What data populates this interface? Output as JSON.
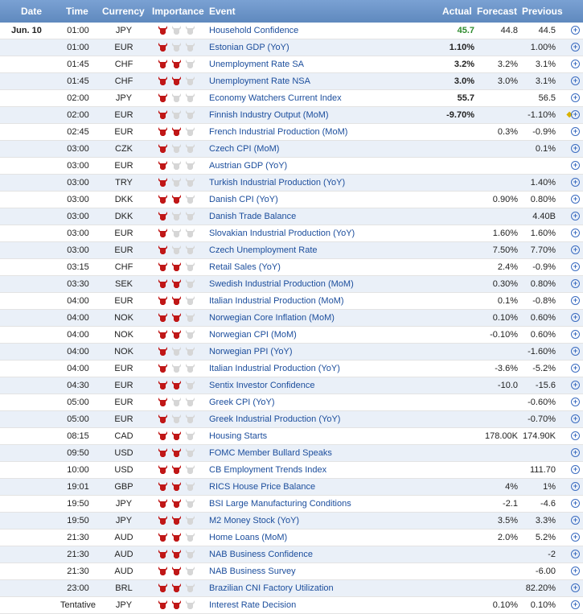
{
  "header": {
    "date": "Date",
    "time": "Time",
    "currency": "Currency",
    "importance": "Importance",
    "event": "Event",
    "actual": "Actual",
    "forecast": "Forecast",
    "previous": "Previous"
  },
  "colors": {
    "header_bg": "#6e96c9",
    "bull_active": "#c01717",
    "bull_inactive": "#d6d6d6",
    "event_link": "#1b4d9c",
    "actual_positive": "#2e8b2e"
  },
  "rows": [
    {
      "date": "Jun. 10",
      "time": "01:00",
      "currency": "JPY",
      "importance": 1,
      "event": "Household Confidence",
      "actual": "45.7",
      "forecast": "44.8",
      "previous": "44.5",
      "actual_class": "pos",
      "flag": ""
    },
    {
      "date": "",
      "time": "01:00",
      "currency": "EUR",
      "importance": 1,
      "event": "Estonian GDP (YoY)",
      "actual": "1.10%",
      "forecast": "",
      "previous": "1.00%",
      "actual_class": "",
      "flag": ""
    },
    {
      "date": "",
      "time": "01:45",
      "currency": "CHF",
      "importance": 2,
      "event": "Unemployment Rate SA",
      "actual": "3.2%",
      "forecast": "3.2%",
      "previous": "3.1%",
      "actual_class": "",
      "flag": ""
    },
    {
      "date": "",
      "time": "01:45",
      "currency": "CHF",
      "importance": 2,
      "event": "Unemployment Rate NSA",
      "actual": "3.0%",
      "forecast": "3.0%",
      "previous": "3.1%",
      "actual_class": "",
      "flag": ""
    },
    {
      "date": "",
      "time": "02:00",
      "currency": "JPY",
      "importance": 1,
      "event": "Economy Watchers Current Index",
      "actual": "55.7",
      "forecast": "",
      "previous": "56.5",
      "actual_class": "",
      "flag": ""
    },
    {
      "date": "",
      "time": "02:00",
      "currency": "EUR",
      "importance": 1,
      "event": "Finnish Industry Output (MoM)",
      "actual": "-9.70%",
      "forecast": "",
      "previous": "-1.10%",
      "actual_class": "",
      "flag": "◆"
    },
    {
      "date": "",
      "time": "02:45",
      "currency": "EUR",
      "importance": 2,
      "event": "French Industrial Production (MoM)",
      "actual": "",
      "forecast": "0.3%",
      "previous": "-0.9%",
      "actual_class": "",
      "flag": ""
    },
    {
      "date": "",
      "time": "03:00",
      "currency": "CZK",
      "importance": 1,
      "event": "Czech CPI (MoM)",
      "actual": "",
      "forecast": "",
      "previous": "0.1%",
      "actual_class": "",
      "flag": ""
    },
    {
      "date": "",
      "time": "03:00",
      "currency": "EUR",
      "importance": 1,
      "event": "Austrian GDP (YoY)",
      "actual": "",
      "forecast": "",
      "previous": "",
      "actual_class": "",
      "flag": ""
    },
    {
      "date": "",
      "time": "03:00",
      "currency": "TRY",
      "importance": 1,
      "event": "Turkish Industrial Production (YoY)",
      "actual": "",
      "forecast": "",
      "previous": "1.40%",
      "actual_class": "",
      "flag": ""
    },
    {
      "date": "",
      "time": "03:00",
      "currency": "DKK",
      "importance": 2,
      "event": "Danish CPI (YoY)",
      "actual": "",
      "forecast": "0.90%",
      "previous": "0.80%",
      "actual_class": "",
      "flag": ""
    },
    {
      "date": "",
      "time": "03:00",
      "currency": "DKK",
      "importance": 1,
      "event": "Danish Trade Balance",
      "actual": "",
      "forecast": "",
      "previous": "4.40B",
      "actual_class": "",
      "flag": ""
    },
    {
      "date": "",
      "time": "03:00",
      "currency": "EUR",
      "importance": 1,
      "event": "Slovakian Industrial Production (YoY)",
      "actual": "",
      "forecast": "1.60%",
      "previous": "1.60%",
      "actual_class": "",
      "flag": ""
    },
    {
      "date": "",
      "time": "03:00",
      "currency": "EUR",
      "importance": 1,
      "event": "Czech Unemployment Rate",
      "actual": "",
      "forecast": "7.50%",
      "previous": "7.70%",
      "actual_class": "",
      "flag": ""
    },
    {
      "date": "",
      "time": "03:15",
      "currency": "CHF",
      "importance": 2,
      "event": "Retail Sales (YoY)",
      "actual": "",
      "forecast": "2.4%",
      "previous": "-0.9%",
      "actual_class": "",
      "flag": ""
    },
    {
      "date": "",
      "time": "03:30",
      "currency": "SEK",
      "importance": 2,
      "event": "Swedish Industrial Production (MoM)",
      "actual": "",
      "forecast": "0.30%",
      "previous": "0.80%",
      "actual_class": "",
      "flag": ""
    },
    {
      "date": "",
      "time": "04:00",
      "currency": "EUR",
      "importance": 2,
      "event": "Italian Industrial Production (MoM)",
      "actual": "",
      "forecast": "0.1%",
      "previous": "-0.8%",
      "actual_class": "",
      "flag": ""
    },
    {
      "date": "",
      "time": "04:00",
      "currency": "NOK",
      "importance": 2,
      "event": "Norwegian Core Inflation (MoM)",
      "actual": "",
      "forecast": "0.10%",
      "previous": "0.60%",
      "actual_class": "",
      "flag": ""
    },
    {
      "date": "",
      "time": "04:00",
      "currency": "NOK",
      "importance": 2,
      "event": "Norwegian CPI (MoM)",
      "actual": "",
      "forecast": "-0.10%",
      "previous": "0.60%",
      "actual_class": "",
      "flag": ""
    },
    {
      "date": "",
      "time": "04:00",
      "currency": "NOK",
      "importance": 1,
      "event": "Norwegian PPI (YoY)",
      "actual": "",
      "forecast": "",
      "previous": "-1.60%",
      "actual_class": "",
      "flag": ""
    },
    {
      "date": "",
      "time": "04:00",
      "currency": "EUR",
      "importance": 1,
      "event": "Italian Industrial Production (YoY)",
      "actual": "",
      "forecast": "-3.6%",
      "previous": "-5.2%",
      "actual_class": "",
      "flag": ""
    },
    {
      "date": "",
      "time": "04:30",
      "currency": "EUR",
      "importance": 2,
      "event": "Sentix Investor Confidence",
      "actual": "",
      "forecast": "-10.0",
      "previous": "-15.6",
      "actual_class": "",
      "flag": ""
    },
    {
      "date": "",
      "time": "05:00",
      "currency": "EUR",
      "importance": 1,
      "event": "Greek CPI (YoY)",
      "actual": "",
      "forecast": "",
      "previous": "-0.60%",
      "actual_class": "",
      "flag": ""
    },
    {
      "date": "",
      "time": "05:00",
      "currency": "EUR",
      "importance": 1,
      "event": "Greek Industrial Production (YoY)",
      "actual": "",
      "forecast": "",
      "previous": "-0.70%",
      "actual_class": "",
      "flag": ""
    },
    {
      "date": "",
      "time": "08:15",
      "currency": "CAD",
      "importance": 2,
      "event": "Housing Starts",
      "actual": "",
      "forecast": "178.00K",
      "previous": "174.90K",
      "actual_class": "",
      "flag": ""
    },
    {
      "date": "",
      "time": "09:50",
      "currency": "USD",
      "importance": 2,
      "event": "FOMC Member Bullard Speaks",
      "actual": "",
      "forecast": "",
      "previous": "",
      "actual_class": "",
      "flag": ""
    },
    {
      "date": "",
      "time": "10:00",
      "currency": "USD",
      "importance": 2,
      "event": "CB Employment Trends Index",
      "actual": "",
      "forecast": "",
      "previous": "111.70",
      "actual_class": "",
      "flag": ""
    },
    {
      "date": "",
      "time": "19:01",
      "currency": "GBP",
      "importance": 2,
      "event": "RICS House Price Balance",
      "actual": "",
      "forecast": "4%",
      "previous": "1%",
      "actual_class": "",
      "flag": ""
    },
    {
      "date": "",
      "time": "19:50",
      "currency": "JPY",
      "importance": 2,
      "event": "BSI Large Manufacturing Conditions",
      "actual": "",
      "forecast": "-2.1",
      "previous": "-4.6",
      "actual_class": "",
      "flag": ""
    },
    {
      "date": "",
      "time": "19:50",
      "currency": "JPY",
      "importance": 2,
      "event": "M2 Money Stock (YoY)",
      "actual": "",
      "forecast": "3.5%",
      "previous": "3.3%",
      "actual_class": "",
      "flag": ""
    },
    {
      "date": "",
      "time": "21:30",
      "currency": "AUD",
      "importance": 2,
      "event": "Home Loans (MoM)",
      "actual": "",
      "forecast": "2.0%",
      "previous": "5.2%",
      "actual_class": "",
      "flag": ""
    },
    {
      "date": "",
      "time": "21:30",
      "currency": "AUD",
      "importance": 2,
      "event": "NAB Business Confidence",
      "actual": "",
      "forecast": "",
      "previous": "-2",
      "actual_class": "",
      "flag": ""
    },
    {
      "date": "",
      "time": "21:30",
      "currency": "AUD",
      "importance": 2,
      "event": "NAB Business Survey",
      "actual": "",
      "forecast": "",
      "previous": "-6.00",
      "actual_class": "",
      "flag": ""
    },
    {
      "date": "",
      "time": "23:00",
      "currency": "BRL",
      "importance": 2,
      "event": "Brazilian CNI Factory Utilization",
      "actual": "",
      "forecast": "",
      "previous": "82.20%",
      "actual_class": "",
      "flag": ""
    },
    {
      "date": "",
      "time": "Tentative",
      "currency": "JPY",
      "importance": 2,
      "event": "Interest Rate Decision",
      "actual": "",
      "forecast": "0.10%",
      "previous": "0.10%",
      "actual_class": "",
      "flag": ""
    }
  ]
}
